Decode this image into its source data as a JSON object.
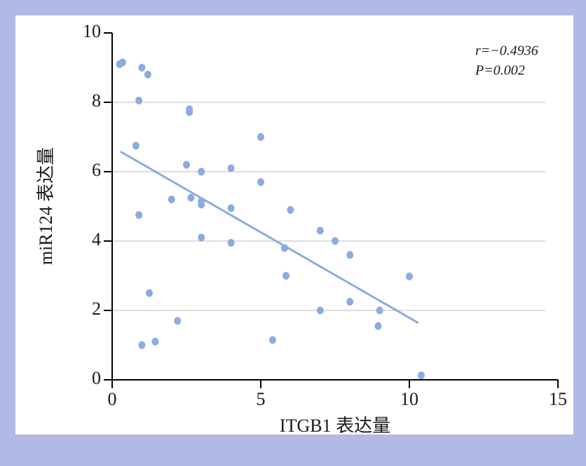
{
  "chart_data": {
    "type": "scatter",
    "x_label": "ITGB1 表达量",
    "y_label": "miR124 表达量",
    "annotations": [
      "r=−0.4936",
      "P=0.002"
    ],
    "xlim": [
      0,
      15
    ],
    "xticks": [
      0,
      5,
      10,
      15
    ],
    "ylim": [
      0,
      10
    ],
    "yticks": [
      0,
      2,
      4,
      6,
      8,
      10
    ],
    "grid": true,
    "color": "#8bace0",
    "series": [
      {
        "x": [
          0.25,
          0.35,
          1.0,
          1.2,
          0.9,
          2.6,
          2.6,
          0.8,
          5.0,
          2.5,
          3.0,
          4.0,
          5.0,
          2.0,
          2.65,
          3.0,
          3.0,
          4.0,
          6.0,
          0.9,
          3.0,
          4.0,
          7.0,
          7.5,
          5.8,
          8.0,
          5.85,
          10.0,
          1.25,
          8.0,
          7.0,
          9.0,
          2.2,
          8.95,
          5.4,
          1.45,
          1.0,
          10.4
        ],
        "values": [
          9.1,
          9.15,
          9.0,
          8.8,
          8.05,
          7.8,
          7.72,
          6.75,
          7.0,
          6.2,
          6.0,
          6.1,
          5.7,
          5.2,
          5.25,
          5.15,
          5.05,
          4.95,
          4.9,
          4.75,
          4.1,
          3.95,
          4.3,
          4.0,
          3.8,
          3.6,
          3.0,
          2.98,
          2.5,
          2.25,
          2.0,
          2.0,
          1.7,
          1.55,
          1.15,
          1.1,
          1.0,
          0.13
        ]
      }
    ],
    "fit_line": {
      "x": [
        0.28,
        10.3
      ],
      "values": [
        6.58,
        1.64
      ]
    }
  }
}
